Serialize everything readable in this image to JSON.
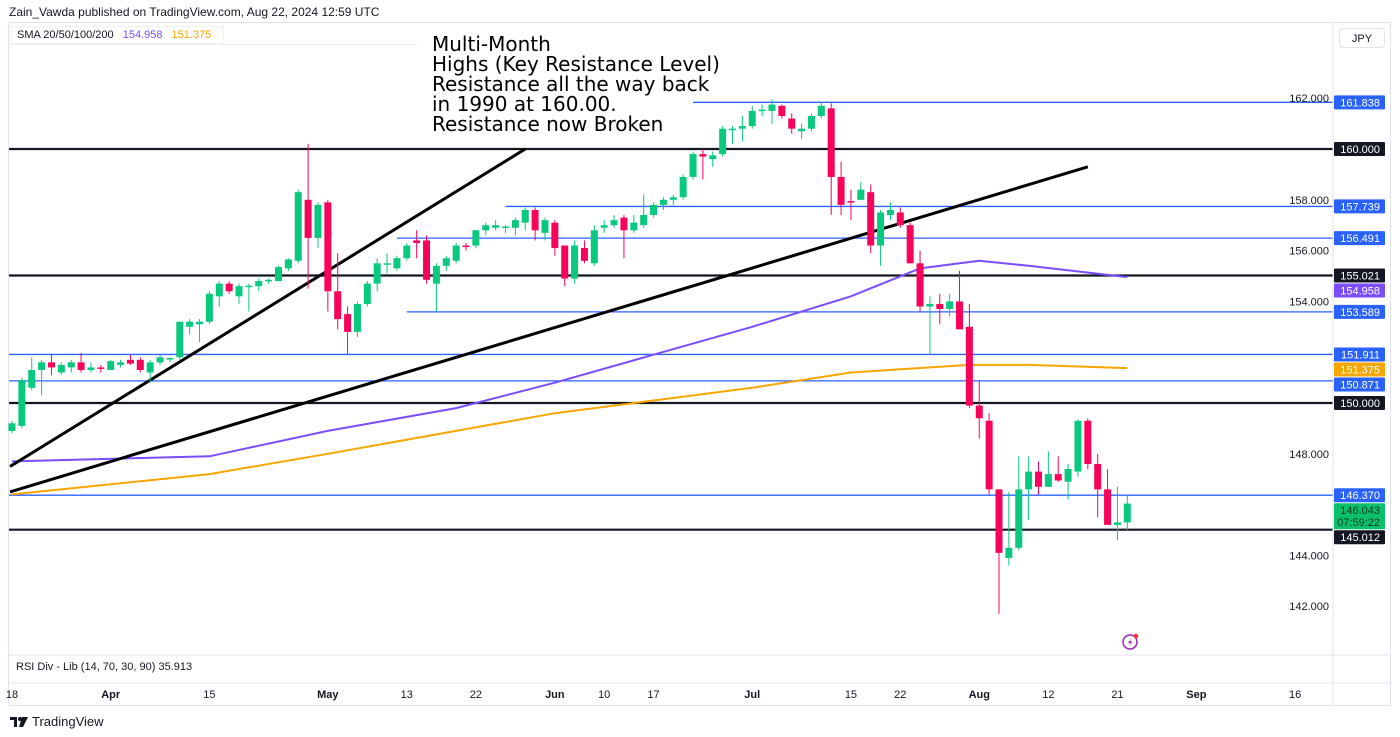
{
  "header": {
    "published": "Zain_Vawda published on TradingView.com, Aug 22, 2024 12:59 UTC"
  },
  "legend": {
    "name": "SMA 20/50/100/200",
    "v100": "154.958",
    "v200": "151.375",
    "c100": "#7b4dff",
    "c200": "#f7a600"
  },
  "currency_button": "JPY",
  "annotation": "Multi-Month\nHighs (Key Resistance Level)\nResistance all the way back\nin 1990 at 160.00.\nResistance now Broken",
  "rsi_legend": "RSI Div - Lib (14, 70, 30, 90)  35.913",
  "logo_text": "TradingView",
  "colors": {
    "up": "#08c97e",
    "down": "#f7045a",
    "level_blue": "#2962ff",
    "level_black": "#131722",
    "last": "#0bc06b"
  },
  "chart_data": {
    "type": "candlestick",
    "symbol_currency": "JPY",
    "ylim": [
      140.4,
      164.0
    ],
    "y_ticks": [
      "162.000",
      "158.000",
      "156.000",
      "154.000",
      "148.000",
      "144.000",
      "142.000"
    ],
    "x_ticks": [
      {
        "label": "18",
        "date": "2024-03-18"
      },
      {
        "label": "Apr",
        "date": "2024-04-01"
      },
      {
        "label": "15",
        "date": "2024-04-15"
      },
      {
        "label": "May",
        "date": "2024-05-01"
      },
      {
        "label": "13",
        "date": "2024-05-13"
      },
      {
        "label": "22",
        "date": "2024-05-22"
      },
      {
        "label": "Jun",
        "date": "2024-06-03"
      },
      {
        "label": "10",
        "date": "2024-06-10"
      },
      {
        "label": "17",
        "date": "2024-06-17"
      },
      {
        "label": "Jul",
        "date": "2024-07-01"
      },
      {
        "label": "15",
        "date": "2024-07-15"
      },
      {
        "label": "22",
        "date": "2024-07-22"
      },
      {
        "label": "Aug",
        "date": "2024-08-01"
      },
      {
        "label": "12",
        "date": "2024-08-12"
      },
      {
        "label": "21",
        "date": "2024-08-21"
      },
      {
        "label": "Sep",
        "date": "2024-09-02"
      },
      {
        "label": "16",
        "date": "2024-09-16"
      }
    ],
    "candles": [
      [
        "03-18",
        148.9,
        149.3,
        148.8,
        149.2
      ],
      [
        "03-19",
        149.1,
        151.0,
        149.0,
        150.9
      ],
      [
        "03-20",
        150.6,
        151.8,
        150.5,
        151.3
      ],
      [
        "03-21",
        151.3,
        151.7,
        150.3,
        151.6
      ],
      [
        "03-22",
        151.6,
        151.9,
        151.1,
        151.4
      ],
      [
        "03-25",
        151.2,
        151.6,
        151.1,
        151.5
      ],
      [
        "03-26",
        151.4,
        151.7,
        151.2,
        151.6
      ],
      [
        "03-27",
        151.6,
        151.97,
        151.2,
        151.3
      ],
      [
        "03-28",
        151.3,
        151.6,
        151.2,
        151.4
      ],
      [
        "03-29",
        151.4,
        151.5,
        151.2,
        151.35
      ],
      [
        "04-01",
        151.3,
        151.7,
        151.3,
        151.65
      ],
      [
        "04-02",
        151.5,
        151.7,
        151.4,
        151.6
      ],
      [
        "04-03",
        151.7,
        151.9,
        151.5,
        151.55
      ],
      [
        "04-04",
        151.7,
        151.8,
        151.2,
        151.3
      ],
      [
        "04-05",
        151.2,
        151.7,
        150.8,
        151.6
      ],
      [
        "04-08",
        151.6,
        151.9,
        151.5,
        151.8
      ],
      [
        "04-09",
        151.75,
        151.8,
        151.6,
        151.77
      ],
      [
        "04-10",
        151.8,
        153.2,
        151.7,
        153.2
      ],
      [
        "04-11",
        153.0,
        153.3,
        152.7,
        153.2
      ],
      [
        "04-12",
        153.1,
        153.3,
        152.4,
        153.2
      ],
      [
        "04-15",
        153.2,
        154.4,
        153.1,
        154.3
      ],
      [
        "04-16",
        154.2,
        154.8,
        153.8,
        154.7
      ],
      [
        "04-17",
        154.7,
        154.8,
        154.3,
        154.4
      ],
      [
        "04-18",
        154.2,
        154.7,
        153.9,
        154.6
      ],
      [
        "04-19",
        154.6,
        154.7,
        153.6,
        154.62
      ],
      [
        "04-22",
        154.6,
        154.9,
        154.4,
        154.8
      ],
      [
        "04-23",
        154.8,
        154.9,
        154.7,
        154.85
      ],
      [
        "04-24",
        154.8,
        155.4,
        154.8,
        155.35
      ],
      [
        "04-25",
        155.3,
        155.7,
        155.2,
        155.65
      ],
      [
        "04-26",
        155.6,
        158.4,
        155.5,
        158.3
      ],
      [
        "04-29",
        158.0,
        160.2,
        154.5,
        156.5
      ],
      [
        "04-30",
        156.5,
        157.9,
        156.1,
        157.8
      ],
      [
        "05-01",
        157.9,
        158.0,
        153.6,
        154.4
      ],
      [
        "05-02",
        154.4,
        155.9,
        152.9,
        153.3
      ],
      [
        "05-03",
        153.5,
        153.8,
        151.9,
        152.8
      ],
      [
        "05-06",
        152.8,
        154.0,
        152.6,
        153.9
      ],
      [
        "05-07",
        153.9,
        154.8,
        153.8,
        154.7
      ],
      [
        "05-08",
        154.7,
        155.7,
        154.4,
        155.5
      ],
      [
        "05-09",
        155.45,
        155.9,
        155.1,
        155.5
      ],
      [
        "05-10",
        155.3,
        155.8,
        155.2,
        155.7
      ],
      [
        "05-13",
        155.7,
        156.3,
        155.6,
        156.2
      ],
      [
        "05-14",
        156.4,
        156.8,
        155.7,
        156.3
      ],
      [
        "05-15",
        156.4,
        156.6,
        154.7,
        154.85
      ],
      [
        "05-16",
        154.7,
        155.5,
        153.6,
        155.4
      ],
      [
        "05-17",
        155.4,
        155.8,
        155.2,
        155.7
      ],
      [
        "05-20",
        155.6,
        156.3,
        155.5,
        156.2
      ],
      [
        "05-21",
        156.2,
        156.3,
        156.0,
        156.15
      ],
      [
        "05-22",
        156.2,
        156.8,
        156.1,
        156.8
      ],
      [
        "05-23",
        156.8,
        157.1,
        156.6,
        157.0
      ],
      [
        "05-24",
        156.9,
        157.2,
        156.8,
        157.0
      ],
      [
        "05-27",
        156.9,
        157.0,
        156.7,
        156.95
      ],
      [
        "05-28",
        156.9,
        157.3,
        156.6,
        157.2
      ],
      [
        "05-29",
        157.1,
        157.7,
        156.8,
        157.6
      ],
      [
        "05-30",
        157.6,
        157.7,
        156.4,
        156.8
      ],
      [
        "05-31",
        156.7,
        157.3,
        156.4,
        157.2
      ],
      [
        "06-03",
        157.1,
        157.2,
        155.8,
        156.1
      ],
      [
        "06-04",
        156.2,
        156.2,
        154.6,
        154.9
      ],
      [
        "06-05",
        154.9,
        156.4,
        154.7,
        156.2
      ],
      [
        "06-06",
        156.1,
        156.4,
        155.5,
        155.6
      ],
      [
        "06-07",
        155.5,
        157.0,
        155.4,
        156.8
      ],
      [
        "06-10",
        156.9,
        157.2,
        156.7,
        157.0
      ],
      [
        "06-11",
        157.0,
        157.4,
        156.9,
        157.2
      ],
      [
        "06-12",
        157.3,
        157.4,
        155.7,
        156.8
      ],
      [
        "06-13",
        156.8,
        157.4,
        156.7,
        157.1
      ],
      [
        "06-14",
        157.0,
        158.2,
        156.9,
        157.4
      ],
      [
        "06-17",
        157.4,
        157.9,
        157.3,
        157.8
      ],
      [
        "06-18",
        157.8,
        158.1,
        157.6,
        158.0
      ],
      [
        "06-19",
        158.0,
        158.2,
        157.8,
        158.1
      ],
      [
        "06-20",
        158.1,
        159.0,
        158.0,
        158.9
      ],
      [
        "06-21",
        158.9,
        159.9,
        158.8,
        159.8
      ],
      [
        "06-24",
        159.8,
        160.0,
        158.8,
        159.7
      ],
      [
        "06-25",
        159.6,
        159.9,
        159.3,
        159.75
      ],
      [
        "06-26",
        159.8,
        160.9,
        159.7,
        160.8
      ],
      [
        "06-27",
        160.8,
        160.9,
        160.2,
        160.8
      ],
      [
        "06-28",
        160.8,
        161.3,
        160.3,
        160.9
      ],
      [
        "07-01",
        160.9,
        161.7,
        160.8,
        161.5
      ],
      [
        "07-02",
        161.5,
        161.75,
        161.3,
        161.55
      ],
      [
        "07-03",
        161.5,
        161.95,
        161.0,
        161.75
      ],
      [
        "07-04",
        161.7,
        161.75,
        161.2,
        161.3
      ],
      [
        "07-05",
        161.2,
        161.4,
        160.6,
        160.8
      ],
      [
        "07-08",
        160.7,
        161.0,
        160.4,
        160.8
      ],
      [
        "07-09",
        160.8,
        161.4,
        160.7,
        161.3
      ],
      [
        "07-10",
        161.3,
        161.85,
        161.2,
        161.7
      ],
      [
        "07-11",
        161.6,
        161.8,
        157.4,
        158.9
      ],
      [
        "07-12",
        158.9,
        159.5,
        157.4,
        157.8
      ],
      [
        "07-15",
        157.95,
        158.4,
        157.2,
        157.9
      ],
      [
        "07-16",
        158.0,
        158.7,
        158.0,
        158.4
      ],
      [
        "07-17",
        158.3,
        158.6,
        155.9,
        156.2
      ],
      [
        "07-18",
        156.2,
        157.6,
        155.4,
        157.5
      ],
      [
        "07-19",
        157.4,
        157.9,
        157.2,
        157.6
      ],
      [
        "07-22",
        157.5,
        157.7,
        156.9,
        157.0
      ],
      [
        "07-23",
        157.0,
        157.1,
        155.5,
        155.5
      ],
      [
        "07-24",
        155.5,
        156.0,
        153.6,
        153.8
      ],
      [
        "07-25",
        153.8,
        154.2,
        151.9,
        153.9
      ],
      [
        "07-26",
        153.9,
        154.3,
        153.1,
        153.7
      ],
      [
        "07-29",
        153.7,
        154.3,
        153.4,
        154.0
      ],
      [
        "07-30",
        154.0,
        155.2,
        152.9,
        152.9
      ],
      [
        "07-31",
        153.0,
        153.9,
        149.8,
        149.9
      ],
      [
        "08-01",
        149.9,
        150.9,
        148.6,
        149.4
      ],
      [
        "08-02",
        149.3,
        149.6,
        146.4,
        146.6
      ],
      [
        "08-05",
        146.6,
        146.6,
        141.7,
        144.1
      ],
      [
        "08-06",
        143.9,
        146.5,
        143.6,
        144.3
      ],
      [
        "08-07",
        144.3,
        147.9,
        144.2,
        146.6
      ],
      [
        "08-08",
        146.6,
        147.9,
        145.4,
        147.3
      ],
      [
        "08-09",
        147.3,
        147.7,
        146.4,
        146.7
      ],
      [
        "08-12",
        146.7,
        148.1,
        146.7,
        147.2
      ],
      [
        "08-13",
        147.2,
        147.9,
        146.9,
        146.95
      ],
      [
        "08-14",
        146.9,
        147.6,
        146.2,
        147.4
      ],
      [
        "08-15",
        147.3,
        149.35,
        147.1,
        149.3
      ],
      [
        "08-16",
        149.3,
        149.4,
        147.4,
        147.6
      ],
      [
        "08-19",
        147.6,
        148.0,
        145.5,
        146.6
      ],
      [
        "08-20",
        146.6,
        147.4,
        145.3,
        145.2
      ],
      [
        "08-21",
        145.2,
        146.7,
        144.6,
        145.3
      ],
      [
        "08-22",
        145.3,
        146.4,
        145.0,
        146.04
      ]
    ],
    "sma100": [
      [
        "03-18",
        147.7
      ],
      [
        "04-15",
        147.9
      ],
      [
        "05-01",
        148.9
      ],
      [
        "05-20",
        149.8
      ],
      [
        "06-03",
        150.8
      ],
      [
        "06-17",
        151.9
      ],
      [
        "07-01",
        153.0
      ],
      [
        "07-15",
        154.2
      ],
      [
        "07-24",
        155.3
      ],
      [
        "08-01",
        155.6
      ],
      [
        "08-08",
        155.4
      ],
      [
        "08-22",
        154.958
      ]
    ],
    "sma200": [
      [
        "03-18",
        146.4
      ],
      [
        "04-15",
        147.2
      ],
      [
        "05-01",
        148.0
      ],
      [
        "05-20",
        148.9
      ],
      [
        "06-03",
        149.6
      ],
      [
        "06-17",
        150.1
      ],
      [
        "07-01",
        150.6
      ],
      [
        "07-15",
        151.2
      ],
      [
        "07-31",
        151.5
      ],
      [
        "08-08",
        151.5
      ],
      [
        "08-22",
        151.375
      ]
    ],
    "trendlines": [
      {
        "from": [
          "03-18",
          147.5
        ],
        "to": [
          "05-29",
          160.0
        ]
      },
      {
        "from": [
          "03-18",
          146.5
        ],
        "to": [
          "08-16",
          159.3
        ]
      }
    ],
    "levels": [
      {
        "price": 161.838,
        "label": "161.838",
        "color": "blue",
        "from": "06-21"
      },
      {
        "price": 160.0,
        "label": "160.000",
        "color": "black",
        "from": "03-18"
      },
      {
        "price": 157.739,
        "label": "157.739",
        "color": "blue",
        "from": "05-27"
      },
      {
        "price": 156.491,
        "label": "156.491",
        "color": "blue",
        "from": "05-10"
      },
      {
        "price": 155.021,
        "label": "155.021",
        "color": "black",
        "from": "03-18"
      },
      {
        "price": 153.589,
        "label": "153.589",
        "color": "blue",
        "from": "05-13"
      },
      {
        "price": 151.911,
        "label": "151.911",
        "color": "blue",
        "from": "03-18"
      },
      {
        "price": 150.871,
        "label": "150.871",
        "color": "blue",
        "from": "03-18"
      },
      {
        "price": 150.0,
        "label": "150.000",
        "color": "black",
        "from": "03-18"
      },
      {
        "price": 146.37,
        "label": "146.370",
        "color": "blue",
        "from": "03-18"
      },
      {
        "price": 145.012,
        "label": "145.012",
        "color": "black",
        "from": "03-18"
      }
    ],
    "sma_badges": [
      {
        "price": 154.958,
        "label": "154.958",
        "color": "#7b4dff"
      },
      {
        "price": 151.375,
        "label": "151.375",
        "color": "#f7a600"
      }
    ],
    "last_price": {
      "price": 146.043,
      "label": "146.043",
      "countdown": "07:59:22"
    }
  }
}
